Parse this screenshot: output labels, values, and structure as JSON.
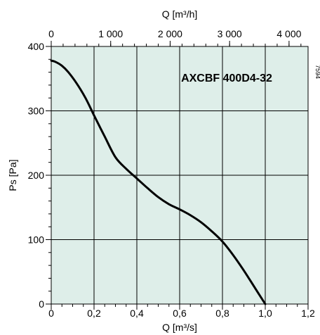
{
  "chart_data": {
    "type": "line",
    "title": "AXCBF 400D4-32",
    "code": "7594",
    "xlabel": "Q [m³/s]",
    "x2label": "Q [m³/h]",
    "ylabel": "Ps [Pa]",
    "xlim": [
      0,
      1.2
    ],
    "x2lim": [
      0,
      4320
    ],
    "ylim": [
      0,
      400
    ],
    "xticks": [
      "0",
      "0,2",
      "0,4",
      "0,6",
      "0,8",
      "1,0",
      "1,2"
    ],
    "x2ticks": [
      "0",
      "1 000",
      "2 000",
      "3 000",
      "4 000"
    ],
    "yticks": [
      "0",
      "100",
      "200",
      "300",
      "400"
    ],
    "grid": true,
    "background_color": "#deeee9",
    "line_color": "#000000",
    "series": [
      {
        "x": [
          0.0,
          0.02,
          0.05,
          0.08,
          0.12,
          0.16,
          0.2,
          0.25,
          0.3,
          0.35,
          0.4,
          0.45,
          0.5,
          0.55,
          0.6,
          0.65,
          0.7,
          0.75,
          0.8,
          0.85,
          0.9,
          0.95,
          1.0
        ],
        "y": [
          378,
          376,
          370,
          360,
          342,
          320,
          293,
          260,
          228,
          210,
          195,
          180,
          166,
          155,
          147,
          138,
          127,
          113,
          97,
          76,
          52,
          26,
          0
        ]
      }
    ]
  }
}
